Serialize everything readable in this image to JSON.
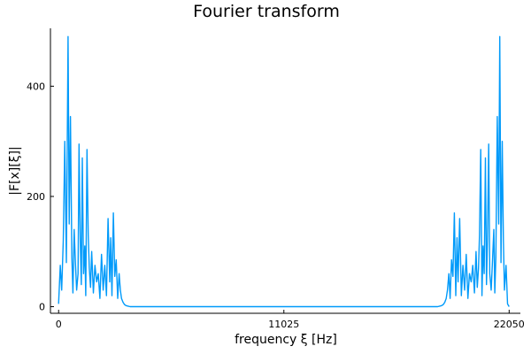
{
  "chart_data": {
    "type": "line",
    "title": "Fourier transform",
    "xlabel": "frequency ξ [Hz]",
    "ylabel": "|F[x][ξ]|",
    "xlim": [
      -400,
      22600
    ],
    "ylim": [
      -12,
      505
    ],
    "xticks": [
      {
        "value": 0,
        "label": "0"
      },
      {
        "value": 11025,
        "label": "11025"
      },
      {
        "value": 22050,
        "label": "22050"
      }
    ],
    "yticks": [
      {
        "value": 0,
        "label": "0"
      },
      {
        "value": 200,
        "label": "200"
      },
      {
        "value": 400,
        "label": "400"
      }
    ],
    "grid": false,
    "legend": "none",
    "series": [
      {
        "color": "#009AFA",
        "x": [
          0,
          80,
          150,
          230,
          300,
          380,
          460,
          520,
          580,
          650,
          700,
          760,
          820,
          880,
          950,
          1000,
          1060,
          1110,
          1160,
          1220,
          1280,
          1330,
          1390,
          1450,
          1500,
          1560,
          1620,
          1700,
          1780,
          1860,
          1940,
          2020,
          2100,
          2180,
          2260,
          2340,
          2420,
          2500,
          2550,
          2610,
          2680,
          2750,
          2820,
          2890,
          2960,
          3020,
          3080,
          3150,
          3220,
          3300,
          3400,
          3500,
          4500,
          11025,
          17550,
          18550,
          18650,
          18750,
          18830,
          18900,
          18970,
          19030,
          19100,
          19160,
          19230,
          19300,
          19370,
          19440,
          19500,
          19550,
          19630,
          19710,
          19790,
          19870,
          19950,
          20030,
          20110,
          20190,
          20270,
          20350,
          20430,
          20490,
          20550,
          20600,
          20660,
          20720,
          20770,
          20830,
          20890,
          20940,
          20990,
          21050,
          21100,
          21170,
          21230,
          21300,
          21350,
          21400,
          21470,
          21540,
          21590,
          21650,
          21710,
          21770,
          21820,
          21900,
          21970,
          22050
        ],
        "y": [
          5,
          75,
          30,
          120,
          300,
          80,
          490,
          150,
          345,
          90,
          25,
          140,
          80,
          30,
          60,
          295,
          120,
          40,
          270,
          60,
          110,
          20,
          285,
          130,
          70,
          35,
          100,
          25,
          75,
          45,
          60,
          15,
          95,
          30,
          75,
          20,
          160,
          45,
          125,
          20,
          170,
          55,
          85,
          15,
          60,
          30,
          15,
          8,
          4,
          2,
          1,
          0,
          0,
          0,
          0,
          0,
          1,
          2,
          4,
          8,
          15,
          30,
          60,
          15,
          85,
          55,
          170,
          20,
          125,
          45,
          160,
          20,
          75,
          30,
          95,
          15,
          60,
          45,
          75,
          25,
          100,
          35,
          70,
          130,
          285,
          20,
          110,
          60,
          270,
          40,
          120,
          295,
          60,
          30,
          80,
          140,
          25,
          90,
          345,
          150,
          490,
          80,
          300,
          120,
          30,
          75,
          5,
          0
        ]
      }
    ]
  }
}
